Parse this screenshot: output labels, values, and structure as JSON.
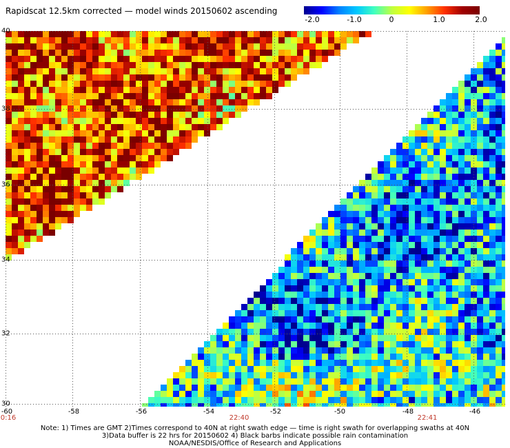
{
  "title": "Rapidscat 12.5km corrected — model winds 20150602 ascending",
  "colorbar": {
    "min": -2.0,
    "max": 2.0,
    "colors": [
      "#00008f",
      "#0000ff",
      "#0080ff",
      "#00c8ff",
      "#40ffbf",
      "#bfff40",
      "#ffff00",
      "#ff9f00",
      "#ff3000",
      "#a00000",
      "#7a0000"
    ],
    "tick_labels": [
      "-2.0",
      "-1.0",
      "0",
      "1.0",
      "2.0"
    ]
  },
  "map": {
    "lon_range": [
      -60,
      -45.5
    ],
    "lat_range": [
      30,
      40
    ],
    "lon_ticks": [
      "-60",
      "-58",
      "-56",
      "-54",
      "-52",
      "-50",
      "-48",
      "-46"
    ],
    "lat_ticks": [
      "40",
      "38",
      "36",
      "34",
      "32",
      "30"
    ],
    "grid": "dotted",
    "swaths": [
      {
        "description": "upper-left swath, mostly positive winds (yellow/red)",
        "bias": 1.1
      },
      {
        "description": "lower-right swath, mostly negative winds (blue)",
        "bias": -0.9
      }
    ]
  },
  "times": {
    "left": "0:16",
    "middle": "22:40",
    "right": "22:41"
  },
  "notes": [
    "Note: 1) Times are GMT 2)Times correspond to 40N at right swath edge — time is right swath for overlapping swaths at 40N",
    "3)Data buffer is 22 hrs for 20150602 4) Black barbs indicate possible rain contamination",
    "NOAA/NESDIS/Office of Research and Applications"
  ]
}
